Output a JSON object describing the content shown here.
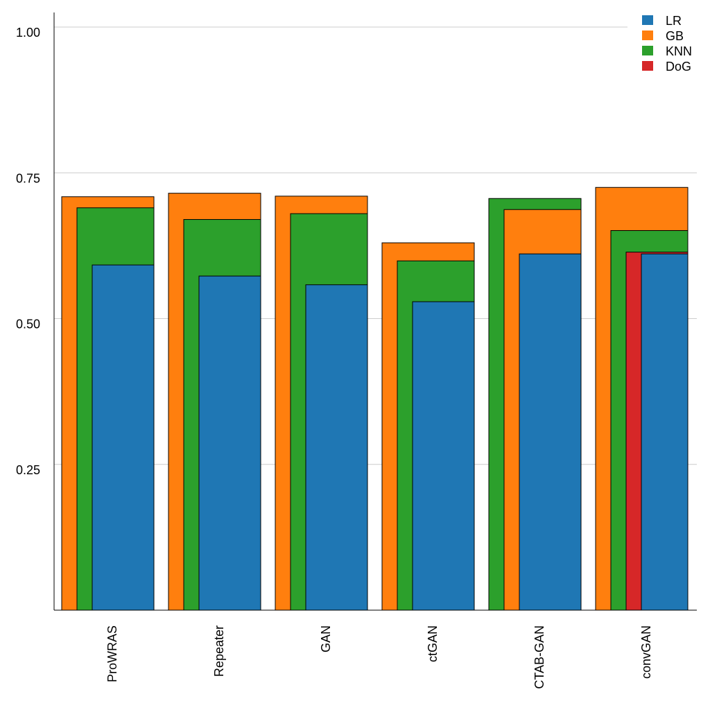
{
  "chart_data": {
    "type": "bar",
    "categories": [
      "ProWRAS",
      "Repeater",
      "GAN",
      "ctGAN",
      "CTAB-GAN",
      "convGAN"
    ],
    "series": [
      {
        "name": "LR",
        "color": "#1f77b4",
        "values": [
          0.592,
          0.573,
          0.558,
          0.529,
          0.611,
          0.611
        ]
      },
      {
        "name": "GB",
        "color": "#ff7f0e",
        "values": [
          0.709,
          0.715,
          0.71,
          0.63,
          0.687,
          0.725
        ]
      },
      {
        "name": "KNN",
        "color": "#2ca02c",
        "values": [
          0.69,
          0.67,
          0.68,
          0.599,
          0.706,
          0.651
        ]
      },
      {
        "name": "DoG",
        "color": "#d62728",
        "values": [
          null,
          null,
          null,
          null,
          null,
          0.614
        ]
      }
    ],
    "ylim": [
      0,
      1.025
    ],
    "yticks": [
      "0.25",
      "0.50",
      "0.75",
      "1.00"
    ],
    "grid": true,
    "legend_position": "top-right",
    "title": "",
    "xlabel": "",
    "ylabel": ""
  }
}
